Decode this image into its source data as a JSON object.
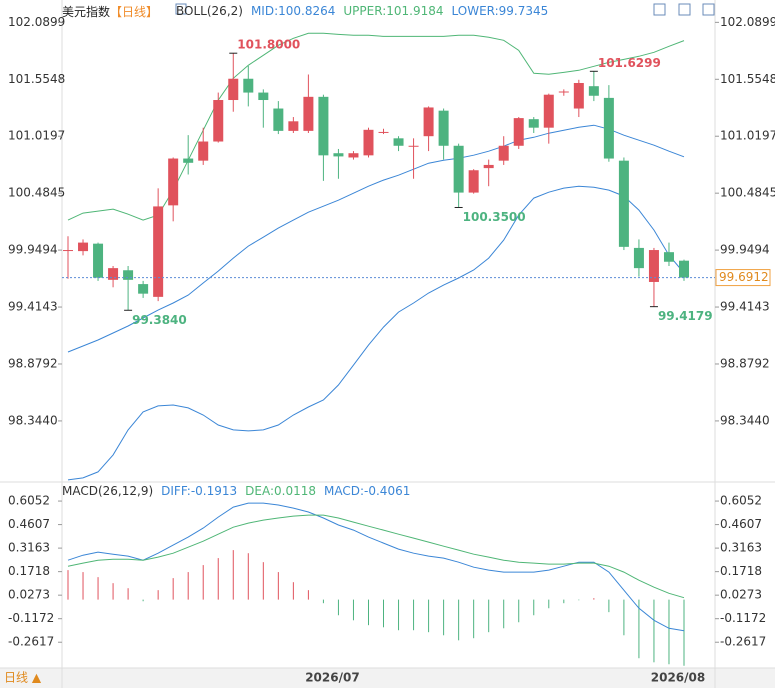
{
  "chart_data": [
    {
      "type": "candlestick",
      "title": "美元指数",
      "period": "【日线】",
      "indicator": "BOLL(26,2)",
      "up_color": "#e0525c",
      "down_color": "#4db380",
      "categories": [
        null,
        null,
        null,
        null,
        null,
        null,
        null,
        null,
        null,
        null,
        null,
        null,
        null,
        null,
        null,
        null,
        null,
        null,
        "2026/07",
        null,
        null,
        null,
        null,
        null,
        null,
        null,
        null,
        null,
        null,
        null,
        null,
        null,
        null,
        null,
        null,
        null,
        null,
        null,
        null,
        null,
        null,
        "2026/08"
      ],
      "open": [
        99.95,
        99.94,
        100.01,
        99.67,
        99.76,
        99.63,
        99.51,
        100.37,
        100.81,
        100.79,
        100.97,
        101.36,
        101.56,
        101.43,
        101.28,
        101.07,
        101.07,
        101.39,
        100.86,
        100.82,
        100.84,
        101.06,
        101.0,
        100.93,
        101.02,
        101.26,
        100.93,
        100.49,
        100.72,
        100.79,
        100.93,
        101.18,
        101.1,
        101.44,
        101.28,
        101.49,
        101.38,
        100.79,
        99.97,
        99.65,
        99.93,
        99.85
      ],
      "high": [
        100.08,
        100.05,
        100.02,
        99.8,
        99.8,
        99.66,
        100.53,
        100.82,
        101.03,
        101.1,
        101.43,
        101.8,
        101.68,
        101.46,
        101.35,
        101.2,
        101.6,
        101.41,
        100.9,
        100.88,
        101.1,
        101.09,
        101.02,
        101.0,
        101.3,
        101.28,
        100.95,
        100.71,
        100.8,
        101.02,
        101.2,
        101.2,
        101.42,
        101.46,
        101.55,
        101.6299,
        101.5,
        100.82,
        100.05,
        99.97,
        100.02,
        99.86
      ],
      "low": [
        99.68,
        99.9,
        99.66,
        99.6,
        99.384,
        99.5,
        99.47,
        100.22,
        100.66,
        100.75,
        100.96,
        101.25,
        101.3,
        101.1,
        101.04,
        101.05,
        101.05,
        100.6,
        100.62,
        100.8,
        100.82,
        101.04,
        100.88,
        100.62,
        100.88,
        100.8,
        100.35,
        100.48,
        100.55,
        100.75,
        100.9,
        101.05,
        100.95,
        101.4,
        101.2,
        101.35,
        100.78,
        99.95,
        99.7,
        99.4179,
        99.8,
        99.66
      ],
      "close": [
        99.95,
        100.02,
        99.69,
        99.78,
        99.67,
        99.54,
        100.36,
        100.81,
        100.77,
        100.97,
        101.36,
        101.56,
        101.43,
        101.36,
        101.07,
        101.16,
        101.39,
        100.84,
        100.83,
        100.86,
        101.08,
        101.06,
        100.93,
        100.93,
        101.29,
        100.93,
        100.49,
        100.7,
        100.75,
        100.93,
        101.19,
        101.1,
        101.41,
        101.44,
        101.52,
        101.4,
        100.81,
        99.98,
        99.78,
        99.95,
        99.84,
        99.6912
      ],
      "series": [
        {
          "name": "MID:100.8264",
          "color": "#3b86d6",
          "values": [
            98.992,
            99.048,
            99.105,
            99.17,
            99.236,
            99.311,
            99.386,
            99.452,
            99.527,
            99.64,
            99.752,
            99.874,
            99.987,
            100.071,
            100.156,
            100.231,
            100.306,
            100.362,
            100.418,
            100.484,
            100.55,
            100.607,
            100.653,
            100.71,
            100.766,
            100.794,
            100.813,
            100.841,
            100.879,
            100.926,
            100.982,
            101.01,
            101.048,
            101.076,
            101.104,
            101.123,
            101.086,
            101.029,
            100.982,
            100.935,
            100.879,
            100.8264
          ]
        },
        {
          "name": "UPPER:101.9184",
          "color": "#4fb676",
          "values": [
            100.231,
            100.297,
            100.316,
            100.335,
            100.287,
            100.231,
            100.278,
            100.513,
            100.794,
            101.076,
            101.358,
            101.564,
            101.686,
            101.78,
            101.874,
            101.94,
            101.987,
            101.987,
            101.977,
            101.968,
            101.968,
            101.958,
            101.958,
            101.958,
            101.958,
            101.958,
            101.968,
            101.968,
            101.949,
            101.921,
            101.827,
            101.611,
            101.602,
            101.62,
            101.639,
            101.677,
            101.714,
            101.742,
            101.771,
            101.808,
            101.865,
            101.9184
          ]
        },
        {
          "name": "LOWER:99.7345",
          "color": "#3b86d6",
          "values": [
            97.79,
            97.809,
            97.865,
            98.025,
            98.26,
            98.429,
            98.485,
            98.494,
            98.466,
            98.4,
            98.306,
            98.26,
            98.25,
            98.26,
            98.306,
            98.4,
            98.475,
            98.541,
            98.682,
            98.869,
            99.057,
            99.226,
            99.367,
            99.452,
            99.546,
            99.621,
            99.687,
            99.762,
            99.874,
            100.043,
            100.278,
            100.438,
            100.494,
            100.532,
            100.55,
            100.541,
            100.513,
            100.457,
            100.325,
            100.137,
            99.902,
            99.7345
          ]
        }
      ],
      "annotations": [
        {
          "value": 101.8,
          "label": "101.8000"
        },
        {
          "value": 100.35,
          "label": "100.3500"
        },
        {
          "value": 99.384,
          "label": "99.3840"
        },
        {
          "value": 99.4179,
          "label": "99.4179"
        },
        {
          "value": 101.6299,
          "label": "101.6299"
        }
      ],
      "last": 99.6912,
      "ylim": [
        97.77,
        102.3
      ],
      "yticks": [
        102.0899,
        101.5548,
        101.0197,
        100.4845,
        99.9494,
        99.4143,
        98.8792,
        {
          "value": 98.344,
          "label": "98.3440"
        }
      ]
    },
    {
      "type": "macd",
      "title": "MACD(26,12,9)",
      "series": [
        {
          "name": "DIFF:-0.1913",
          "color": "#3b86d6",
          "values": [
            0.242,
            0.273,
            0.292,
            0.279,
            0.267,
            0.242,
            0.285,
            0.335,
            0.384,
            0.439,
            0.507,
            0.568,
            0.593,
            0.593,
            0.581,
            0.562,
            0.538,
            0.501,
            0.458,
            0.427,
            0.384,
            0.347,
            0.31,
            0.285,
            0.267,
            0.255,
            0.23,
            0.199,
            0.181,
            0.169,
            0.169,
            0.169,
            0.181,
            0.205,
            0.23,
            0.23,
            0.169,
            0.058,
            -0.053,
            -0.127,
            -0.176,
            -0.1913
          ]
        },
        {
          "name": "DEA:0.0118",
          "color": "#4fb676",
          "values": [
            0.205,
            0.224,
            0.242,
            0.248,
            0.248,
            0.242,
            0.261,
            0.285,
            0.322,
            0.359,
            0.402,
            0.445,
            0.47,
            0.488,
            0.501,
            0.513,
            0.519,
            0.519,
            0.501,
            0.476,
            0.451,
            0.427,
            0.402,
            0.378,
            0.353,
            0.328,
            0.304,
            0.279,
            0.261,
            0.242,
            0.23,
            0.224,
            0.218,
            0.218,
            0.224,
            0.224,
            0.205,
            0.169,
            0.119,
            0.076,
            0.039,
            0.0118
          ]
        }
      ],
      "histogram": {
        "name": "MACD:-0.4061",
        "color": "#7a7a7a",
        "values": [
          0.181,
          0.169,
          0.138,
          0.101,
          0.07,
          -0.01,
          0.058,
          0.132,
          0.169,
          0.212,
          0.255,
          0.304,
          0.285,
          0.23,
          0.169,
          0.107,
          0.058,
          -0.022,
          -0.096,
          -0.127,
          -0.157,
          -0.17,
          -0.188,
          -0.188,
          -0.2,
          -0.219,
          -0.25,
          -0.237,
          -0.2,
          -0.176,
          -0.139,
          -0.096,
          -0.053,
          -0.022,
          -0.004,
          0.009,
          -0.077,
          -0.219,
          -0.36,
          -0.385,
          -0.397,
          -0.4061
        ]
      },
      "ylim": [
        -0.42,
        0.71
      ],
      "yticks": [
        0.6052,
        0.4607,
        0.3163,
        0.1718,
        0.0273,
        -0.1172,
        -0.2617
      ]
    }
  ],
  "footer": {
    "period": "日线 ▲"
  }
}
